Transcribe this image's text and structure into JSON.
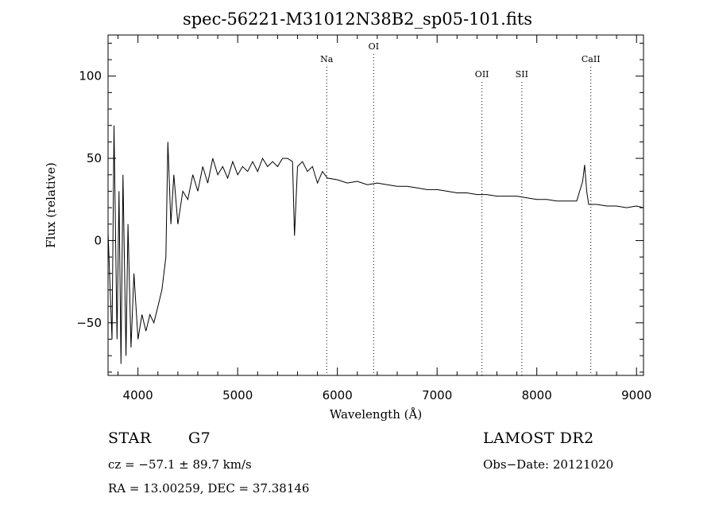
{
  "chart_data": {
    "type": "line",
    "title": "spec-56221-M31012N38B2_sp05-101.fits",
    "xlabel": "Wavelength (Å)",
    "ylabel": "Flux (relative)",
    "xlim": [
      3700,
      9070
    ],
    "ylim": [
      -82,
      125
    ],
    "x_ticks": [
      4000,
      5000,
      6000,
      7000,
      8000,
      9000
    ],
    "x_tick_labels": [
      "4000",
      "5000",
      "6000",
      "7000",
      "8000",
      "9000"
    ],
    "y_ticks": [
      -50,
      0,
      50,
      100
    ],
    "y_tick_labels": [
      "−50",
      "0",
      "50",
      "100"
    ],
    "grid": false,
    "line_color": "#000000",
    "lines": [
      {
        "label": "Na",
        "x": 5893
      },
      {
        "label": "OI",
        "x": 6364
      },
      {
        "label": "OII",
        "x": 7450
      },
      {
        "label": "SII",
        "x": 7850
      },
      {
        "label": "CaII",
        "x": 8542
      }
    ],
    "series": [
      {
        "x": [
          3700,
          3740,
          3760,
          3790,
          3810,
          3830,
          3850,
          3880,
          3900,
          3930,
          3960,
          4000,
          4040,
          4080,
          4120,
          4160,
          4200,
          4240,
          4280,
          4300,
          4330,
          4360,
          4400,
          4450,
          4500,
          4550,
          4600,
          4650,
          4700,
          4750,
          4800,
          4850,
          4900,
          4950,
          5000,
          5050,
          5100,
          5150,
          5200,
          5250,
          5300,
          5350,
          5400,
          5450,
          5500,
          5550,
          5570,
          5600,
          5650,
          5700,
          5750,
          5800,
          5850,
          5900,
          6000,
          6100,
          6200,
          6300,
          6400,
          6500,
          6600,
          6700,
          6800,
          6900,
          7000,
          7100,
          7200,
          7300,
          7400,
          7500,
          7600,
          7700,
          7800,
          7900,
          8000,
          8100,
          8200,
          8300,
          8400,
          8460,
          8480,
          8500,
          8520,
          8560,
          8600,
          8700,
          8800,
          8900,
          9000,
          9070
        ],
        "y": [
          5,
          -60,
          70,
          -60,
          30,
          -75,
          40,
          -70,
          10,
          -65,
          -20,
          -60,
          -45,
          -55,
          -45,
          -50,
          -40,
          -30,
          -10,
          60,
          10,
          40,
          10,
          30,
          25,
          40,
          30,
          45,
          35,
          50,
          40,
          45,
          38,
          48,
          40,
          45,
          42,
          48,
          42,
          50,
          45,
          48,
          45,
          50,
          50,
          48,
          3,
          45,
          48,
          42,
          45,
          35,
          42,
          38,
          37,
          35,
          36,
          34,
          35,
          34,
          33,
          33,
          32,
          31,
          31,
          30,
          29,
          29,
          28,
          28,
          27,
          27,
          27,
          26,
          25,
          25,
          24,
          24,
          24,
          36,
          46,
          30,
          22,
          22,
          22,
          21,
          21,
          20,
          21,
          20
        ]
      }
    ]
  },
  "footer": {
    "object_class": "STAR",
    "subclass": "G7",
    "survey": "LAMOST DR2",
    "velocity": "cz = −57.1 ± 89.7 km/s",
    "obs_date": "Obs−Date: 20121020",
    "coords": "RA =  13.00259, DEC =  37.38146"
  }
}
